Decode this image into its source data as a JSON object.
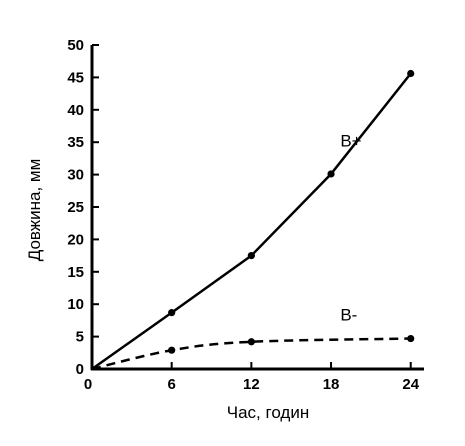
{
  "chart_data": {
    "type": "line",
    "title": "",
    "xlabel": "Час, годин",
    "ylabel": "Довжина, мм",
    "xlim": [
      0,
      25
    ],
    "ylim": [
      0,
      50
    ],
    "x_ticks": [
      0,
      6,
      12,
      18,
      24
    ],
    "y_ticks": [
      0,
      5,
      10,
      15,
      20,
      25,
      30,
      35,
      40,
      45,
      50
    ],
    "grid": false,
    "series": [
      {
        "name": "B+",
        "style": "solid",
        "color": "#000000",
        "x": [
          0,
          6,
          12,
          18,
          24
        ],
        "values": [
          0,
          8.7,
          17.5,
          30.1,
          45.6
        ]
      },
      {
        "name": "B-",
        "style": "dashed",
        "color": "#000000",
        "x": [
          0,
          6,
          12,
          24
        ],
        "values": [
          0,
          2.9,
          4.2,
          4.7
        ]
      }
    ]
  }
}
